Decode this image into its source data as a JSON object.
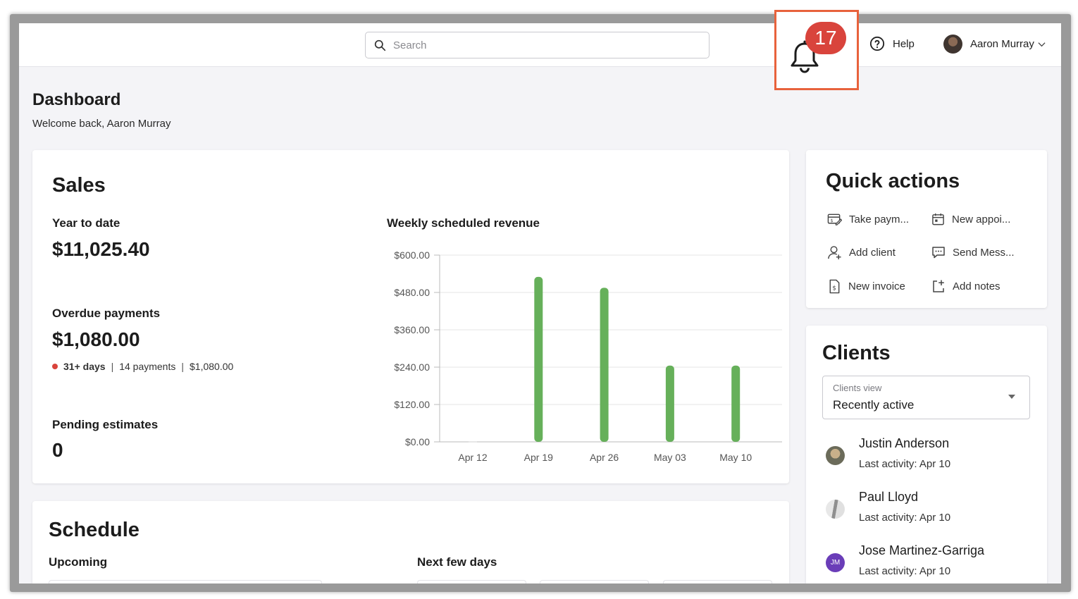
{
  "topbar": {
    "search_placeholder": "Search",
    "notification_count": "17",
    "help_label": "Help",
    "user_name": "Aaron Murray"
  },
  "page": {
    "title": "Dashboard",
    "welcome": "Welcome back, Aaron Murray"
  },
  "sales": {
    "title": "Sales",
    "ytd_label": "Year to date",
    "ytd_value": "$11,025.40",
    "overdue_label": "Overdue payments",
    "overdue_value": "$1,080.00",
    "overdue_age": "31+ days",
    "overdue_count": "14 payments",
    "overdue_amount": "$1,080.00",
    "pending_label": "Pending estimates",
    "pending_value": "0"
  },
  "chart_data": {
    "type": "bar",
    "title": "Weekly scheduled revenue",
    "categories": [
      "Apr 12",
      "Apr 19",
      "Apr 26",
      "May 03",
      "May 10"
    ],
    "values": [
      0,
      530,
      495,
      245,
      245
    ],
    "ylim": [
      0,
      600
    ],
    "yticks": [
      "$0.00",
      "$120.00",
      "$240.00",
      "$360.00",
      "$480.00",
      "$600.00"
    ],
    "ytick_values": [
      0,
      120,
      240,
      360,
      480,
      600
    ],
    "xlabel": "",
    "ylabel": "",
    "bar_color": "#66b05a",
    "grid": true
  },
  "quick_actions": {
    "title": "Quick actions",
    "items": [
      {
        "label": "Take paym...",
        "icon": "payment-icon"
      },
      {
        "label": "New appoi...",
        "icon": "calendar-icon"
      },
      {
        "label": "Add client",
        "icon": "add-user-icon"
      },
      {
        "label": "Send Mess...",
        "icon": "message-icon"
      },
      {
        "label": "New invoice",
        "icon": "invoice-icon"
      },
      {
        "label": "Add notes",
        "icon": "notes-icon"
      }
    ]
  },
  "clients": {
    "title": "Clients",
    "view_label": "Clients view",
    "view_value": "Recently active",
    "list": [
      {
        "name": "Justin Anderson",
        "activity": "Last activity: Apr 10"
      },
      {
        "name": "Paul Lloyd",
        "activity": "Last activity: Apr 10"
      },
      {
        "name": "Jose Martinez-Garriga",
        "activity": "Last activity: Apr 10",
        "initials": "JM"
      }
    ]
  },
  "schedule": {
    "title": "Schedule",
    "upcoming_label": "Upcoming",
    "next_days_label": "Next few days"
  },
  "colors": {
    "accent_highlight": "#e8623c",
    "badge": "#d9443c",
    "bar": "#66b05a"
  }
}
